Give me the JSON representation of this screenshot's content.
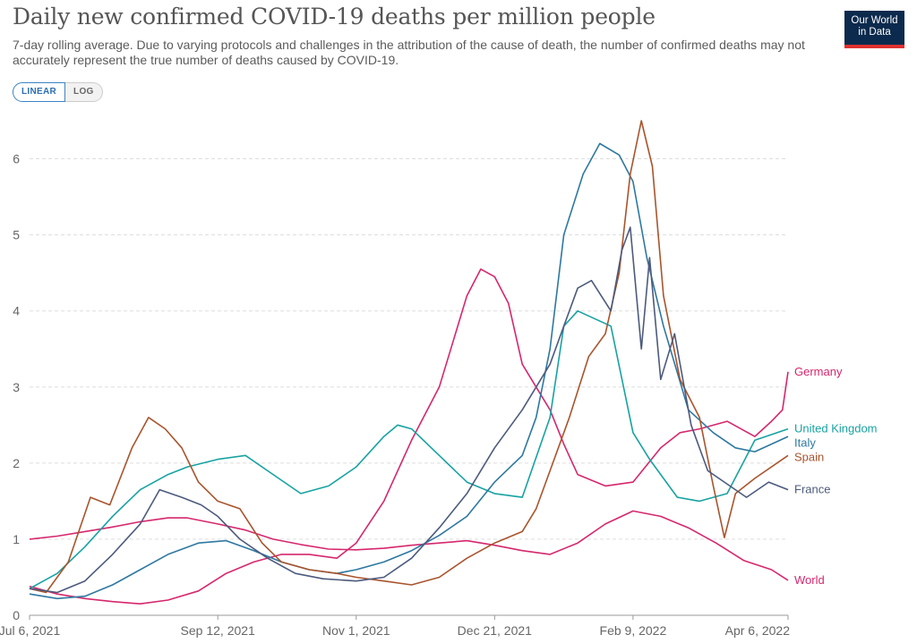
{
  "header": {
    "title": "Daily new confirmed COVID-19 deaths per million people",
    "subtitle": "7-day rolling average. Due to varying protocols and challenges in the attribution of the cause of death, the number of confirmed deaths may not accurately represent the true number of deaths caused by COVID-19.",
    "logo_line1": "Our World",
    "logo_line2": "in Data"
  },
  "controls": {
    "linear_label": "LINEAR",
    "log_label": "LOG",
    "selected": "LINEAR"
  },
  "chart_data": {
    "type": "line",
    "ylim": [
      0,
      6.5
    ],
    "yticks": [
      0,
      1,
      2,
      3,
      4,
      5,
      6
    ],
    "xlim": [
      "2021-07-06",
      "2022-04-06"
    ],
    "xticks": [
      {
        "date": "2021-07-06",
        "label": "Jul 6, 2021"
      },
      {
        "date": "2021-09-12",
        "label": "Sep 12, 2021"
      },
      {
        "date": "2021-11-01",
        "label": "Nov 1, 2021"
      },
      {
        "date": "2021-12-21",
        "label": "Dec 21, 2021"
      },
      {
        "date": "2022-02-09",
        "label": "Feb 9, 2022"
      },
      {
        "date": "2022-04-06",
        "label": "Apr 6, 2022"
      }
    ],
    "grid": true,
    "legend": "right, at line ends",
    "series": [
      {
        "name": "World",
        "color": "#d6276d",
        "points": [
          [
            "2021-07-06",
            1.0
          ],
          [
            "2021-07-16",
            1.04
          ],
          [
            "2021-07-26",
            1.1
          ],
          [
            "2021-08-05",
            1.16
          ],
          [
            "2021-08-15",
            1.23
          ],
          [
            "2021-08-25",
            1.28
          ],
          [
            "2021-09-01",
            1.28
          ],
          [
            "2021-09-12",
            1.2
          ],
          [
            "2021-09-22",
            1.12
          ],
          [
            "2021-10-02",
            1.0
          ],
          [
            "2021-10-12",
            0.93
          ],
          [
            "2021-10-22",
            0.87
          ],
          [
            "2021-11-01",
            0.86
          ],
          [
            "2021-11-11",
            0.88
          ],
          [
            "2021-11-21",
            0.92
          ],
          [
            "2021-12-01",
            0.95
          ],
          [
            "2021-12-11",
            0.98
          ],
          [
            "2021-12-21",
            0.92
          ],
          [
            "2021-12-31",
            0.85
          ],
          [
            "2022-01-10",
            0.8
          ],
          [
            "2022-01-20",
            0.95
          ],
          [
            "2022-01-30",
            1.2
          ],
          [
            "2022-02-09",
            1.37
          ],
          [
            "2022-02-19",
            1.3
          ],
          [
            "2022-03-01",
            1.15
          ],
          [
            "2022-03-11",
            0.95
          ],
          [
            "2022-03-21",
            0.72
          ],
          [
            "2022-03-31",
            0.6
          ],
          [
            "2022-04-06",
            0.46
          ]
        ]
      },
      {
        "name": "Germany",
        "color": "#d6276d",
        "points": [
          [
            "2021-07-06",
            0.38
          ],
          [
            "2021-07-16",
            0.28
          ],
          [
            "2021-07-26",
            0.22
          ],
          [
            "2021-08-05",
            0.18
          ],
          [
            "2021-08-15",
            0.15
          ],
          [
            "2021-08-25",
            0.2
          ],
          [
            "2021-09-05",
            0.32
          ],
          [
            "2021-09-15",
            0.55
          ],
          [
            "2021-09-25",
            0.7
          ],
          [
            "2021-10-05",
            0.8
          ],
          [
            "2021-10-15",
            0.8
          ],
          [
            "2021-10-25",
            0.75
          ],
          [
            "2021-11-01",
            0.95
          ],
          [
            "2021-11-11",
            1.5
          ],
          [
            "2021-11-21",
            2.3
          ],
          [
            "2021-12-01",
            3.0
          ],
          [
            "2021-12-06",
            3.6
          ],
          [
            "2021-12-11",
            4.2
          ],
          [
            "2021-12-16",
            4.55
          ],
          [
            "2021-12-21",
            4.45
          ],
          [
            "2021-12-26",
            4.1
          ],
          [
            "2021-12-31",
            3.3
          ],
          [
            "2022-01-05",
            3.0
          ],
          [
            "2022-01-10",
            2.7
          ],
          [
            "2022-01-15",
            2.25
          ],
          [
            "2022-01-20",
            1.85
          ],
          [
            "2022-01-30",
            1.7
          ],
          [
            "2022-02-09",
            1.75
          ],
          [
            "2022-02-19",
            2.2
          ],
          [
            "2022-02-26",
            2.4
          ],
          [
            "2022-03-05",
            2.45
          ],
          [
            "2022-03-15",
            2.55
          ],
          [
            "2022-03-25",
            2.35
          ],
          [
            "2022-03-31",
            2.55
          ],
          [
            "2022-04-04",
            2.7
          ],
          [
            "2022-04-06",
            3.2
          ]
        ]
      },
      {
        "name": "United Kingdom",
        "color": "#18a2a2",
        "points": [
          [
            "2021-07-06",
            0.35
          ],
          [
            "2021-07-16",
            0.55
          ],
          [
            "2021-07-26",
            0.9
          ],
          [
            "2021-08-05",
            1.3
          ],
          [
            "2021-08-15",
            1.65
          ],
          [
            "2021-08-25",
            1.85
          ],
          [
            "2021-09-01",
            1.95
          ],
          [
            "2021-09-12",
            2.05
          ],
          [
            "2021-09-22",
            2.1
          ],
          [
            "2021-10-02",
            1.85
          ],
          [
            "2021-10-12",
            1.6
          ],
          [
            "2021-10-22",
            1.7
          ],
          [
            "2021-11-01",
            1.95
          ],
          [
            "2021-11-11",
            2.35
          ],
          [
            "2021-11-16",
            2.5
          ],
          [
            "2021-11-21",
            2.45
          ],
          [
            "2021-12-01",
            2.1
          ],
          [
            "2021-12-11",
            1.75
          ],
          [
            "2021-12-21",
            1.6
          ],
          [
            "2021-12-31",
            1.55
          ],
          [
            "2022-01-10",
            2.6
          ],
          [
            "2022-01-15",
            3.8
          ],
          [
            "2022-01-20",
            4.0
          ],
          [
            "2022-02-01",
            3.8
          ],
          [
            "2022-02-09",
            2.4
          ],
          [
            "2022-02-15",
            2.05
          ],
          [
            "2022-02-25",
            1.55
          ],
          [
            "2022-03-05",
            1.5
          ],
          [
            "2022-03-15",
            1.6
          ],
          [
            "2022-03-25",
            2.3
          ],
          [
            "2022-04-06",
            2.45
          ]
        ]
      },
      {
        "name": "Italy",
        "color": "#2e78a0",
        "points": [
          [
            "2021-07-06",
            0.28
          ],
          [
            "2021-07-16",
            0.22
          ],
          [
            "2021-07-26",
            0.25
          ],
          [
            "2021-08-05",
            0.4
          ],
          [
            "2021-08-15",
            0.6
          ],
          [
            "2021-08-25",
            0.8
          ],
          [
            "2021-09-05",
            0.95
          ],
          [
            "2021-09-15",
            0.98
          ],
          [
            "2021-09-25",
            0.85
          ],
          [
            "2021-10-05",
            0.7
          ],
          [
            "2021-10-15",
            0.6
          ],
          [
            "2021-10-25",
            0.55
          ],
          [
            "2021-11-01",
            0.6
          ],
          [
            "2021-11-11",
            0.7
          ],
          [
            "2021-11-21",
            0.85
          ],
          [
            "2021-12-01",
            1.05
          ],
          [
            "2021-12-11",
            1.3
          ],
          [
            "2021-12-21",
            1.75
          ],
          [
            "2021-12-31",
            2.1
          ],
          [
            "2022-01-05",
            2.6
          ],
          [
            "2022-01-10",
            3.5
          ],
          [
            "2022-01-15",
            5.0
          ],
          [
            "2022-01-22",
            5.8
          ],
          [
            "2022-01-28",
            6.2
          ],
          [
            "2022-02-04",
            6.05
          ],
          [
            "2022-02-09",
            5.7
          ],
          [
            "2022-02-14",
            4.7
          ],
          [
            "2022-02-20",
            3.8
          ],
          [
            "2022-03-01",
            2.7
          ],
          [
            "2022-03-10",
            2.4
          ],
          [
            "2022-03-18",
            2.2
          ],
          [
            "2022-03-25",
            2.15
          ],
          [
            "2022-04-06",
            2.35
          ]
        ]
      },
      {
        "name": "Spain",
        "color": "#a9542c",
        "points": [
          [
            "2021-07-06",
            0.35
          ],
          [
            "2021-07-12",
            0.3
          ],
          [
            "2021-07-20",
            0.7
          ],
          [
            "2021-07-28",
            1.55
          ],
          [
            "2021-08-04",
            1.45
          ],
          [
            "2021-08-12",
            2.2
          ],
          [
            "2021-08-18",
            2.6
          ],
          [
            "2021-08-24",
            2.45
          ],
          [
            "2021-08-30",
            2.2
          ],
          [
            "2021-09-05",
            1.75
          ],
          [
            "2021-09-12",
            1.5
          ],
          [
            "2021-09-20",
            1.4
          ],
          [
            "2021-09-28",
            0.95
          ],
          [
            "2021-10-05",
            0.7
          ],
          [
            "2021-10-15",
            0.6
          ],
          [
            "2021-10-25",
            0.55
          ],
          [
            "2021-11-01",
            0.5
          ],
          [
            "2021-11-11",
            0.45
          ],
          [
            "2021-11-21",
            0.4
          ],
          [
            "2021-12-01",
            0.5
          ],
          [
            "2021-12-11",
            0.75
          ],
          [
            "2021-12-21",
            0.95
          ],
          [
            "2021-12-31",
            1.1
          ],
          [
            "2022-01-05",
            1.4
          ],
          [
            "2022-01-10",
            1.9
          ],
          [
            "2022-01-17",
            2.6
          ],
          [
            "2022-01-24",
            3.4
          ],
          [
            "2022-01-30",
            3.7
          ],
          [
            "2022-02-04",
            4.5
          ],
          [
            "2022-02-08",
            5.8
          ],
          [
            "2022-02-12",
            6.5
          ],
          [
            "2022-02-16",
            5.9
          ],
          [
            "2022-02-20",
            4.2
          ],
          [
            "2022-02-26",
            3.1
          ],
          [
            "2022-03-05",
            2.6
          ],
          [
            "2022-03-10",
            1.7
          ],
          [
            "2022-03-14",
            1.02
          ],
          [
            "2022-03-18",
            1.6
          ],
          [
            "2022-03-25",
            1.8
          ],
          [
            "2022-04-06",
            2.1
          ]
        ]
      },
      {
        "name": "France",
        "color": "#4c5a7d",
        "points": [
          [
            "2021-07-06",
            0.35
          ],
          [
            "2021-07-16",
            0.3
          ],
          [
            "2021-07-26",
            0.45
          ],
          [
            "2021-08-05",
            0.8
          ],
          [
            "2021-08-15",
            1.2
          ],
          [
            "2021-08-22",
            1.65
          ],
          [
            "2021-08-30",
            1.55
          ],
          [
            "2021-09-06",
            1.45
          ],
          [
            "2021-09-12",
            1.3
          ],
          [
            "2021-09-20",
            1.0
          ],
          [
            "2021-09-30",
            0.75
          ],
          [
            "2021-10-10",
            0.55
          ],
          [
            "2021-10-20",
            0.48
          ],
          [
            "2021-11-01",
            0.45
          ],
          [
            "2021-11-11",
            0.5
          ],
          [
            "2021-11-21",
            0.75
          ],
          [
            "2021-12-01",
            1.15
          ],
          [
            "2021-12-11",
            1.6
          ],
          [
            "2021-12-21",
            2.2
          ],
          [
            "2021-12-31",
            2.7
          ],
          [
            "2022-01-05",
            3.0
          ],
          [
            "2022-01-10",
            3.3
          ],
          [
            "2022-01-15",
            3.8
          ],
          [
            "2022-01-20",
            4.3
          ],
          [
            "2022-01-25",
            4.4
          ],
          [
            "2022-02-01",
            4.0
          ],
          [
            "2022-02-05",
            4.8
          ],
          [
            "2022-02-08",
            5.1
          ],
          [
            "2022-02-12",
            3.5
          ],
          [
            "2022-02-15",
            4.7
          ],
          [
            "2022-02-19",
            3.1
          ],
          [
            "2022-02-24",
            3.7
          ],
          [
            "2022-03-02",
            2.5
          ],
          [
            "2022-03-08",
            1.9
          ],
          [
            "2022-03-14",
            1.75
          ],
          [
            "2022-03-22",
            1.55
          ],
          [
            "2022-03-30",
            1.75
          ],
          [
            "2022-04-06",
            1.65
          ]
        ]
      }
    ]
  }
}
